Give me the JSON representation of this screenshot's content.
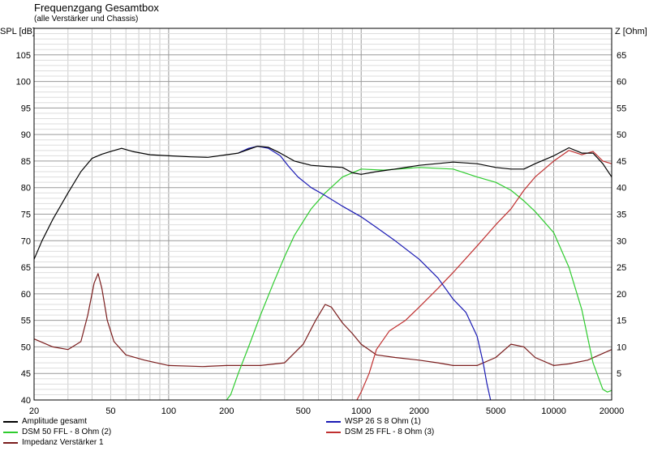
{
  "chart_data": {
    "type": "line",
    "title": "Frequenzgang Gesamtbox",
    "subtitle": "(alle Verstärker und Chassis)",
    "ylabel": "SPL [dB]",
    "y2label": "Z [Ohm]",
    "xscale": "log",
    "xlim": [
      20,
      20000
    ],
    "ylim": [
      40,
      110
    ],
    "y2lim": [
      0,
      70
    ],
    "grid": true,
    "x_ticks": [
      20,
      50,
      100,
      200,
      500,
      1000,
      2000,
      5000,
      10000,
      20000
    ],
    "x_tick_labels": [
      "20",
      "50",
      "100",
      "200",
      "500",
      "1000",
      "2000",
      "5000",
      "10000",
      "20000"
    ],
    "y_ticks": [
      40,
      45,
      50,
      55,
      60,
      65,
      70,
      75,
      80,
      85,
      90,
      95,
      100,
      105
    ],
    "y2_ticks": [
      5,
      10,
      15,
      20,
      25,
      30,
      35,
      40,
      45,
      50,
      55,
      60,
      65
    ],
    "series": [
      {
        "name": "Amplitude gesamt",
        "color": "#000000",
        "axis": "left",
        "x": [
          20,
          22,
          25,
          30,
          35,
          40,
          45,
          50,
          57,
          65,
          80,
          100,
          130,
          160,
          200,
          230,
          260,
          290,
          330,
          380,
          450,
          550,
          650,
          800,
          900,
          1000,
          1200,
          1500,
          2000,
          3000,
          4000,
          5000,
          6000,
          7000,
          8000,
          10000,
          12000,
          14000,
          16000,
          18000,
          20000
        ],
        "y": [
          66.5,
          70,
          74,
          79,
          83,
          85.5,
          86.3,
          86.8,
          87.4,
          86.8,
          86.2,
          86,
          85.8,
          85.7,
          86.2,
          86.5,
          87.2,
          87.8,
          87.6,
          86.5,
          85,
          84.2,
          84,
          83.8,
          82.8,
          82.5,
          83,
          83.5,
          84.2,
          84.8,
          84.5,
          83.8,
          83.5,
          83.5,
          84.5,
          86,
          87.5,
          86.5,
          86.5,
          84.5,
          82
        ]
      },
      {
        "name": "WSP 26 S 8 Ohm (1)",
        "color": "#1a1ab4",
        "axis": "left",
        "x": [
          230,
          260,
          290,
          330,
          380,
          420,
          470,
          550,
          650,
          800,
          1000,
          1200,
          1500,
          2000,
          2500,
          3000,
          3500,
          4000,
          4300,
          4500,
          4700
        ],
        "y": [
          86.5,
          87.4,
          87.8,
          87.4,
          86,
          84,
          82,
          80,
          78.5,
          76.5,
          74.5,
          72.5,
          70,
          66.5,
          63,
          59,
          56.5,
          52,
          47,
          43,
          40
        ]
      },
      {
        "name": "DSM 50 FFL - 8 Ohm (2)",
        "color": "#2ecc2e",
        "axis": "left",
        "x": [
          200,
          210,
          230,
          260,
          300,
          350,
          400,
          450,
          550,
          650,
          800,
          1000,
          1300,
          2000,
          3000,
          4000,
          5000,
          6000,
          7000,
          8000,
          10000,
          12000,
          14000,
          16000,
          18000,
          19000,
          20000
        ],
        "y": [
          40,
          41,
          45,
          50,
          56,
          62,
          67,
          71,
          76,
          79,
          82,
          83.5,
          83.3,
          83.8,
          83.5,
          82,
          81,
          79.5,
          77.5,
          75.5,
          71.5,
          65,
          57,
          47,
          42,
          41.5,
          41.8
        ]
      },
      {
        "name": "DSM 25 FFL - 8 Ohm (3)",
        "color": "#c03030",
        "axis": "left",
        "x": [
          950,
          1000,
          1100,
          1200,
          1400,
          1700,
          2000,
          2500,
          3000,
          4000,
          5000,
          6000,
          7000,
          8000,
          10000,
          12000,
          14000,
          16000,
          18000,
          20000
        ],
        "y": [
          40,
          41.5,
          45,
          49.5,
          53,
          55,
          57.5,
          61,
          64,
          69,
          73,
          76,
          79.5,
          82,
          85,
          87,
          86.2,
          86.8,
          85,
          84.5
        ]
      },
      {
        "name": "Impedanz Verstärker 1",
        "color": "#7a1c1c",
        "axis": "right",
        "x": [
          20,
          25,
          30,
          35,
          38,
          41,
          43,
          45,
          48,
          52,
          60,
          75,
          100,
          150,
          200,
          300,
          400,
          500,
          580,
          650,
          700,
          800,
          900,
          1000,
          1200,
          1500,
          2000,
          2500,
          3000,
          4000,
          5000,
          6000,
          7000,
          8000,
          10000,
          12000,
          15000,
          20000
        ],
        "y": [
          11.5,
          10,
          9.5,
          11,
          16,
          22,
          23.8,
          21,
          15,
          11,
          8.5,
          7.5,
          6.5,
          6.3,
          6.5,
          6.5,
          7,
          10.5,
          15,
          18,
          17.5,
          14.5,
          12.5,
          10.5,
          8.5,
          8,
          7.5,
          7,
          6.5,
          6.5,
          8,
          10.5,
          10,
          8,
          6.5,
          6.8,
          7.5,
          9.5
        ]
      }
    ]
  }
}
